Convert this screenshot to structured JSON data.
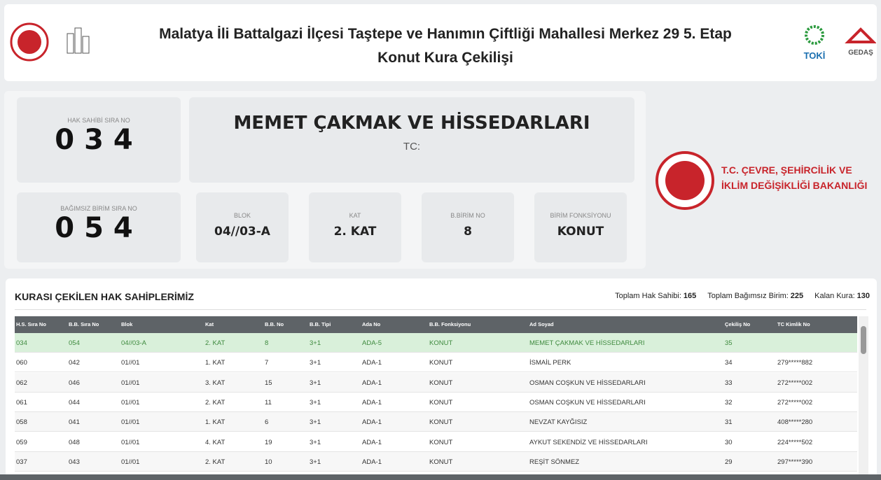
{
  "header": {
    "title_line1": "Malatya İli Battalgazi İlçesi Taştepe ve Hanımın Çiftliği Mahallesi Merkez 29 5. Etap",
    "title_line2": "Konut Kura Çekilişi",
    "logo_toki": "TOKİ",
    "logo_gedas": "GEDAŞ"
  },
  "current": {
    "hak_sahibi_label": "HAK SAHİBİ SIRA NO",
    "hak_sahibi_no": "034",
    "birim_label": "BAĞIMSIZ BİRİM SIRA NO",
    "birim_no": "054",
    "name": "MEMET ÇAKMAK VE HİSSEDARLARI",
    "tc_label": "TC:",
    "fields": [
      {
        "label": "BLOK",
        "value": "04//03-A"
      },
      {
        "label": "KAT",
        "value": "2. KAT"
      },
      {
        "label": "B.BİRİM NO",
        "value": "8"
      },
      {
        "label": "BİRİM FONKSİYONU",
        "value": "KONUT"
      }
    ]
  },
  "ministry": {
    "line1": "T.C. ÇEVRE, ŞEHİRCİLİK VE",
    "line2": "İKLİM DEĞİŞİKLİĞİ BAKANLIĞI"
  },
  "table": {
    "title": "KURASI ÇEKİLEN HAK SAHİPLERİMİZ",
    "stats": [
      {
        "label": "Toplam Hak Sahibi:",
        "value": 165
      },
      {
        "label": "Toplam Bağımsız Birim:",
        "value": 225
      },
      {
        "label": "Kalan Kura:",
        "value": 130
      }
    ],
    "columns": [
      "H.S. Sıra No",
      "B.B. Sıra No",
      "Blok",
      "Kat",
      "B.B. No",
      "B.B. Tipi",
      "Ada No",
      "B.B. Fonksiyonu",
      "Ad Soyad",
      "Çekiliş No",
      "TC Kimlik No"
    ],
    "rows": [
      [
        "034",
        "054",
        "04//03-A",
        "2. KAT",
        "8",
        "3+1",
        "ADA-5",
        "KONUT",
        "MEMET ÇAKMAK VE HİSSEDARLARI",
        "35",
        null
      ],
      [
        "060",
        "042",
        "01//01",
        "1. KAT",
        "7",
        "3+1",
        "ADA-1",
        "KONUT",
        "İSMAİL PERK",
        "34",
        "279*****882"
      ],
      [
        "062",
        "046",
        "01//01",
        "3. KAT",
        "15",
        "3+1",
        "ADA-1",
        "KONUT",
        "OSMAN COŞKUN VE HİSSEDARLARI",
        "33",
        "272*****002"
      ],
      [
        "061",
        "044",
        "01//01",
        "2. KAT",
        "11",
        "3+1",
        "ADA-1",
        "KONUT",
        "OSMAN COŞKUN VE HİSSEDARLARI",
        "32",
        "272*****002"
      ],
      [
        "058",
        "041",
        "01//01",
        "1. KAT",
        "6",
        "3+1",
        "ADA-1",
        "KONUT",
        "NEVZAT KAYĞISIZ",
        "31",
        "408*****280"
      ],
      [
        "059",
        "048",
        "01//01",
        "4. KAT",
        "19",
        "3+1",
        "ADA-1",
        "KONUT",
        "AYKUT SEKENDİZ VE HİSSEDARLARI",
        "30",
        "224*****502"
      ],
      [
        "037",
        "043",
        "01//01",
        "2. KAT",
        "10",
        "3+1",
        "ADA-1",
        "KONUT",
        "REŞİT SÖNMEZ",
        "29",
        "297*****390"
      ]
    ]
  }
}
